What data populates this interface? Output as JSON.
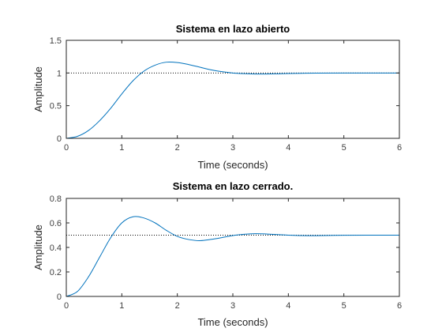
{
  "figure": {
    "background": "#ffffff",
    "axes_color": "#262626",
    "tick_label_color": "#404040"
  },
  "chart_data": [
    {
      "type": "line",
      "title": "Sistema en lazo abierto",
      "xlabel": "Time (seconds)",
      "ylabel": "Amplitude",
      "xlim": [
        0,
        6
      ],
      "ylim": [
        0,
        1.5
      ],
      "xticks": [
        "0",
        "1",
        "2",
        "3",
        "4",
        "5",
        "6"
      ],
      "yticks": [
        "0",
        "0.5",
        "1",
        "1.5"
      ],
      "grid": false,
      "reference_line": {
        "y": 1,
        "style": "dotted",
        "color": "#000000"
      },
      "series": [
        {
          "color": "#0072bd",
          "points": [
            [
              0,
              0
            ],
            [
              0.2,
              0.03
            ],
            [
              0.4,
              0.12
            ],
            [
              0.6,
              0.27
            ],
            [
              0.8,
              0.46
            ],
            [
              1.0,
              0.68
            ],
            [
              1.2,
              0.88
            ],
            [
              1.4,
              1.03
            ],
            [
              1.6,
              1.12
            ],
            [
              1.8,
              1.165
            ],
            [
              2.0,
              1.16
            ],
            [
              2.2,
              1.13
            ],
            [
              2.4,
              1.09
            ],
            [
              2.6,
              1.05
            ],
            [
              2.8,
              1.02
            ],
            [
              3.0,
              1.0
            ],
            [
              3.2,
              0.99
            ],
            [
              3.4,
              0.985
            ],
            [
              3.6,
              0.985
            ],
            [
              3.8,
              0.988
            ],
            [
              4.0,
              0.992
            ],
            [
              4.5,
              0.998
            ],
            [
              5.0,
              1.0
            ],
            [
              5.5,
              1.0
            ],
            [
              6.0,
              1.0
            ]
          ]
        }
      ]
    },
    {
      "type": "line",
      "title": "Sistema en lazo cerrado.",
      "xlabel": "Time (seconds)",
      "ylabel": "Amplitude",
      "xlim": [
        0,
        6
      ],
      "ylim": [
        0,
        0.8
      ],
      "xticks": [
        "0",
        "1",
        "2",
        "3",
        "4",
        "5",
        "6"
      ],
      "yticks": [
        "0",
        "0.2",
        "0.4",
        "0.6",
        "0.8"
      ],
      "grid": false,
      "reference_line": {
        "y": 0.5,
        "style": "dotted",
        "color": "#000000"
      },
      "series": [
        {
          "color": "#0072bd",
          "points": [
            [
              0,
              0
            ],
            [
              0.2,
              0.04
            ],
            [
              0.4,
              0.16
            ],
            [
              0.6,
              0.32
            ],
            [
              0.8,
              0.48
            ],
            [
              1.0,
              0.6
            ],
            [
              1.2,
              0.65
            ],
            [
              1.4,
              0.64
            ],
            [
              1.6,
              0.6
            ],
            [
              1.8,
              0.54
            ],
            [
              2.0,
              0.49
            ],
            [
              2.2,
              0.465
            ],
            [
              2.4,
              0.455
            ],
            [
              2.6,
              0.465
            ],
            [
              2.8,
              0.48
            ],
            [
              3.0,
              0.497
            ],
            [
              3.2,
              0.507
            ],
            [
              3.4,
              0.512
            ],
            [
              3.6,
              0.51
            ],
            [
              3.8,
              0.505
            ],
            [
              4.0,
              0.5
            ],
            [
              4.2,
              0.497
            ],
            [
              4.5,
              0.496
            ],
            [
              5.0,
              0.499
            ],
            [
              5.5,
              0.5
            ],
            [
              6.0,
              0.5
            ]
          ]
        }
      ]
    }
  ]
}
